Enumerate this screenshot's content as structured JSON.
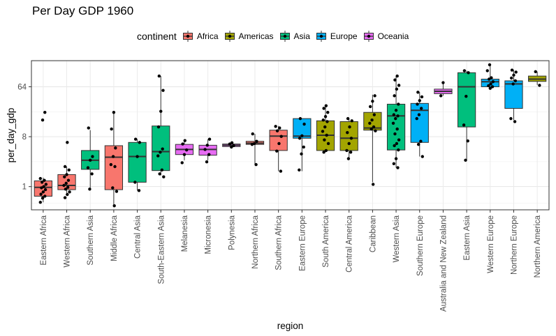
{
  "chart_data": {
    "type": "boxplot",
    "title": "Per Day GDP 1960",
    "xlabel": "region",
    "ylabel": "per_day_gdp",
    "y_scale": "log2",
    "y_ticks": [
      1,
      8,
      64
    ],
    "y_tick_labels": [
      "1",
      "8",
      "64"
    ],
    "grid": true,
    "legend": {
      "title": "continent",
      "position": "top",
      "entries": [
        {
          "name": "Africa",
          "color": "#F8766D"
        },
        {
          "name": "Americas",
          "color": "#A3A500"
        },
        {
          "name": "Asia",
          "color": "#00BF7D"
        },
        {
          "name": "Europe",
          "color": "#00B0F6"
        },
        {
          "name": "Oceania",
          "color": "#E76BF3"
        }
      ]
    },
    "regions": [
      {
        "region": "Eastern Africa",
        "continent": "Africa",
        "min": 0.52,
        "q1": 0.67,
        "median": 0.97,
        "q3": 1.27,
        "max": 1.45,
        "points": [
          0.52,
          0.62,
          0.67,
          0.73,
          0.8,
          0.88,
          0.95,
          1.0,
          1.1,
          1.2,
          1.3,
          1.4,
          16,
          22
        ]
      },
      {
        "region": "Western Africa",
        "continent": "Africa",
        "min": 0.7,
        "q1": 0.88,
        "median": 1.05,
        "q3": 1.65,
        "max": 2.3,
        "points": [
          0.63,
          0.72,
          0.8,
          0.9,
          0.97,
          1.05,
          1.15,
          1.3,
          1.5,
          1.65,
          2.0,
          2.3,
          6.3
        ]
      },
      {
        "region": "Southern Asia",
        "continent": "Asia",
        "min": 0.95,
        "q1": 2.05,
        "median": 3.0,
        "q3": 4.5,
        "max": 10.5,
        "points": [
          0.9,
          1.7,
          2.2,
          3.0,
          3.5,
          11.5
        ]
      },
      {
        "region": "Middle Africa",
        "continent": "Africa",
        "min": 0.45,
        "q1": 0.88,
        "median": 3.4,
        "q3": 5.5,
        "max": 22,
        "points": [
          0.45,
          0.82,
          0.95,
          2.3,
          2.5,
          3.5,
          5.0,
          11.0,
          22
        ]
      },
      {
        "region": "Central Asia",
        "continent": "Asia",
        "min": 0.85,
        "q1": 1.2,
        "median": 3.5,
        "q3": 6.3,
        "max": 7.2,
        "points": [
          0.85,
          1.2,
          3.5,
          6.3,
          7.2
        ]
      },
      {
        "region": "South-Eastern Asia",
        "continent": "Asia",
        "min": 1.6,
        "q1": 1.95,
        "median": 4.3,
        "q3": 12.5,
        "max": 100,
        "points": [
          1.5,
          1.7,
          2.0,
          3.6,
          4.2,
          4.8,
          12.0,
          23,
          55,
          100
        ]
      },
      {
        "region": "Melanesia",
        "continent": "Oceania",
        "min": 3.0,
        "q1": 3.8,
        "median": 4.7,
        "q3": 5.8,
        "max": 6.8,
        "points": [
          2.7,
          3.8,
          4.6,
          5.9,
          6.8
        ]
      },
      {
        "region": "Micronesia",
        "continent": "Oceania",
        "min": 3.0,
        "q1": 3.7,
        "median": 4.7,
        "q3": 5.6,
        "max": 7.2,
        "points": [
          2.8,
          3.8,
          4.7,
          5.6,
          7.2
        ]
      },
      {
        "region": "Polynesia",
        "continent": "Oceania",
        "min": 5.1,
        "q1": 5.3,
        "median": 5.6,
        "q3": 5.9,
        "max": 6.2,
        "points": [
          5.2,
          5.5,
          5.9,
          6.2
        ]
      },
      {
        "region": "Northern Africa",
        "continent": "Africa",
        "min": 2.5,
        "q1": 5.8,
        "median": 6.1,
        "q3": 6.6,
        "max": 9.0,
        "points": [
          2.5,
          5.8,
          6.0,
          6.6,
          9.0
        ]
      },
      {
        "region": "Southern Africa",
        "continent": "Africa",
        "min": 1.9,
        "q1": 4.5,
        "median": 8.2,
        "q3": 10.5,
        "max": 12.5,
        "points": [
          1.9,
          4.4,
          6.0,
          8.1,
          10.2,
          11.5,
          12.3
        ]
      },
      {
        "region": "Eastern Europe",
        "continent": "Europe",
        "min": 1.9,
        "q1": 7.5,
        "median": 8.2,
        "q3": 17,
        "max": 17,
        "points": [
          2.0,
          3.9,
          5.2,
          7.5,
          8.3,
          13.5,
          17
        ]
      },
      {
        "region": "South America",
        "continent": "Americas",
        "min": 4.2,
        "q1": 4.5,
        "median": 8.5,
        "q3": 15.5,
        "max": 29,
        "points": [
          4.2,
          4.5,
          6.0,
          7.0,
          8.5,
          10.0,
          12.0,
          15.0,
          16.0,
          18.5,
          22,
          26,
          29
        ]
      },
      {
        "region": "Central America",
        "continent": "Americas",
        "min": 3.2,
        "q1": 4.5,
        "median": 7.5,
        "q3": 15,
        "max": 17,
        "points": [
          3.2,
          4.2,
          4.5,
          6.0,
          7.5,
          9.5,
          12.0,
          15.5,
          17
        ]
      },
      {
        "region": "Caribbean",
        "continent": "Americas",
        "min": 1.2,
        "q1": 10.5,
        "median": 11.5,
        "q3": 22,
        "max": 46,
        "points": [
          1.1,
          10.2,
          11.0,
          12.0,
          14.0,
          16.0,
          20.0,
          28,
          35,
          44
        ]
      },
      {
        "region": "Western Asia",
        "continent": "Asia",
        "min": 2.2,
        "q1": 4.6,
        "median": 19,
        "q3": 31,
        "max": 100,
        "points": [
          2.2,
          2.6,
          3.2,
          4.6,
          5.5,
          6.0,
          7.0,
          9.0,
          11.0,
          14.0,
          17.0,
          19.0,
          20.0,
          24,
          31,
          44,
          58,
          68,
          85,
          100
        ]
      },
      {
        "region": "Southern Europe",
        "continent": "Europe",
        "min": 3.5,
        "q1": 6.3,
        "median": 24,
        "q3": 32,
        "max": 51,
        "points": [
          3.5,
          5.8,
          6.6,
          17.0,
          20,
          26,
          31,
          36,
          42,
          51
        ]
      },
      {
        "region": "Australia and New Zealand",
        "continent": "Oceania",
        "min": 44,
        "q1": 48,
        "median": 53,
        "q3": 58,
        "max": 76,
        "points": [
          44,
          76
        ]
      },
      {
        "region": "Eastern Asia",
        "continent": "Asia",
        "min": 3.0,
        "q1": 12,
        "median": 64,
        "q3": 115,
        "max": 125,
        "points": [
          3.0,
          6.7,
          13,
          43,
          115,
          125
        ]
      },
      {
        "region": "Western Europe",
        "continent": "Europe",
        "min": 60,
        "q1": 64,
        "median": 79,
        "q3": 88,
        "max": 160,
        "points": [
          60,
          64,
          67,
          72,
          79,
          88,
          93,
          125,
          160
        ]
      },
      {
        "region": "Northern Europe",
        "continent": "Europe",
        "min": 16,
        "q1": 26,
        "median": 72,
        "q3": 82,
        "max": 128,
        "points": [
          15,
          17,
          72,
          82,
          92,
          104,
          118,
          128
        ]
      },
      {
        "region": "Northern America",
        "continent": "Americas",
        "min": 69,
        "q1": 80,
        "median": 88,
        "q3": 100,
        "max": 120,
        "points": [
          68,
          120
        ]
      }
    ]
  }
}
